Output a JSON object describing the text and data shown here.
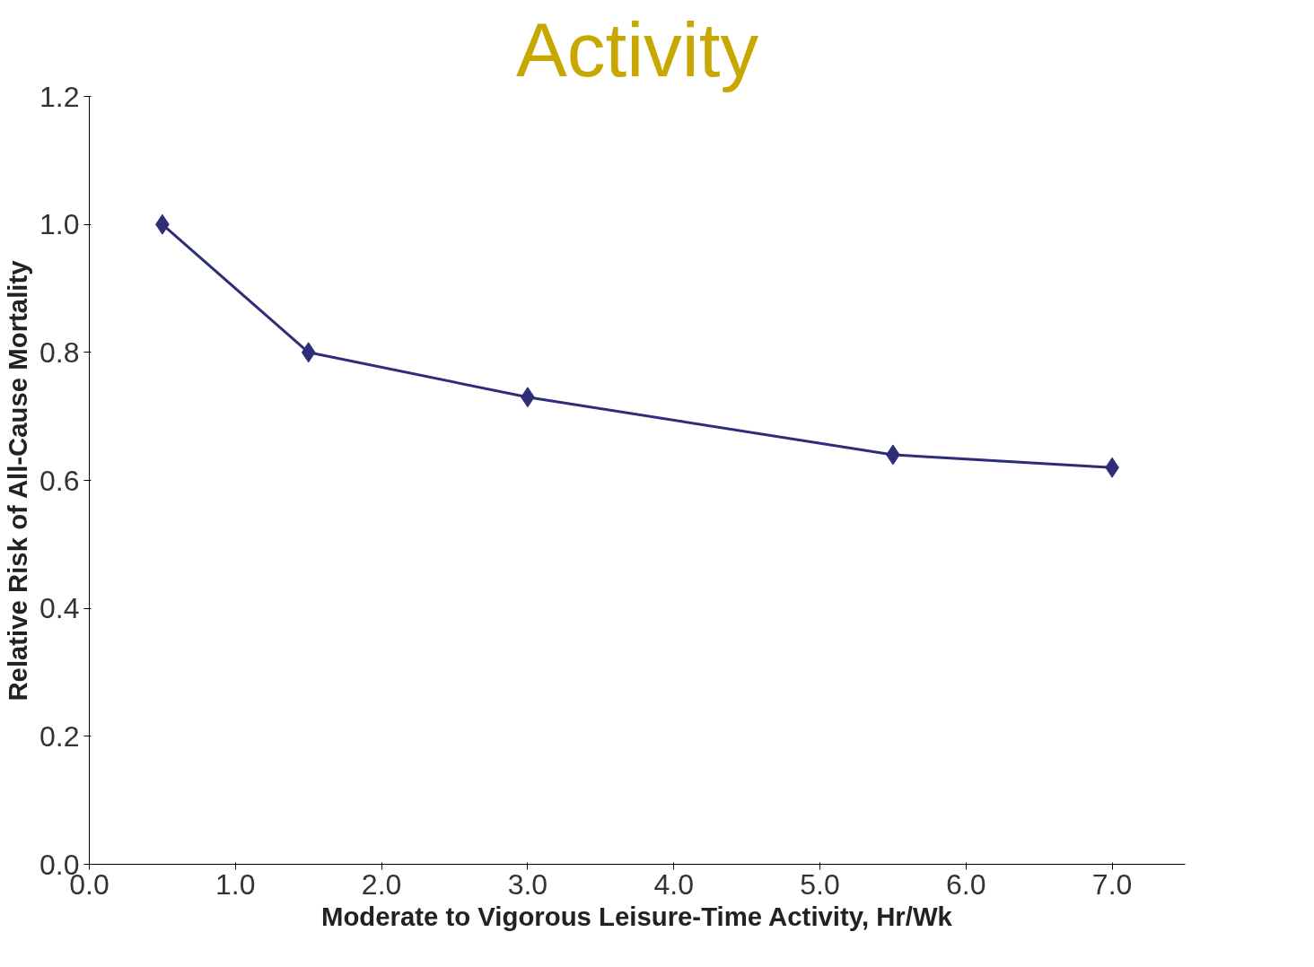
{
  "chart_data": {
    "type": "line",
    "title": "Activity",
    "xlabel": "Moderate to Vigorous Leisure-Time Activity, Hr/Wk",
    "ylabel": "Relative Risk of All-Cause Mortality",
    "x": [
      0.5,
      1.5,
      3.0,
      5.5,
      7.0
    ],
    "series": [
      {
        "color": "#2e2e78",
        "values": [
          1.0,
          0.8,
          0.73,
          0.64,
          0.62
        ]
      }
    ],
    "xlim": [
      0,
      7.5
    ],
    "ylim": [
      0,
      1.2
    ],
    "xticks": [
      {
        "value": 0,
        "label": "0.0"
      },
      {
        "value": 1,
        "label": "1.0"
      },
      {
        "value": 2,
        "label": "2.0"
      },
      {
        "value": 3,
        "label": "3.0"
      },
      {
        "value": 4,
        "label": "4.0"
      },
      {
        "value": 5,
        "label": "5.0"
      },
      {
        "value": 6,
        "label": "6.0"
      },
      {
        "value": 7,
        "label": "7.0"
      }
    ],
    "yticks": [
      {
        "value": 0,
        "label": "0.0"
      },
      {
        "value": 0.2,
        "label": "0.2"
      },
      {
        "value": 0.4,
        "label": "0.4"
      },
      {
        "value": 0.6,
        "label": "0.6"
      },
      {
        "value": 0.8,
        "label": "0.8"
      },
      {
        "value": 1.0,
        "label": "1.0"
      },
      {
        "value": 1.2,
        "label": "1.2"
      }
    ],
    "grid": false,
    "marker": "diamond",
    "line_style": "solid"
  }
}
